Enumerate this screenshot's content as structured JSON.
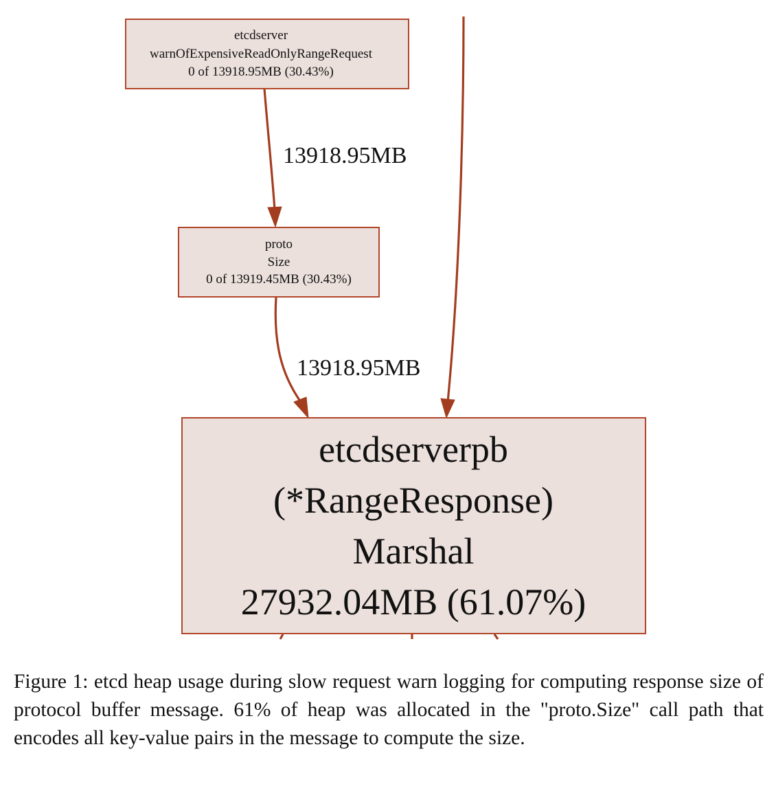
{
  "nodes": {
    "warn": {
      "line1": "etcdserver",
      "line2": "warnOfExpensiveReadOnlyRangeRequest",
      "line3": "0 of 13918.95MB (30.43%)"
    },
    "proto": {
      "line1": "proto",
      "line2": "Size",
      "line3": "0 of 13919.45MB (30.43%)"
    },
    "marshal": {
      "line1": "etcdserverpb",
      "line2": "(*RangeResponse)",
      "line3": "Marshal",
      "line4": "27932.04MB (61.07%)"
    }
  },
  "edges": {
    "warn_to_proto": "13918.95MB",
    "proto_to_marshal": "13918.95MB"
  },
  "caption": "Figure 1: etcd heap usage during slow request warn logging for computing response size of protocol buffer message. 61% of heap was allocated in the \"proto.Size\" call path that encodes all key-value pairs in the message to compute the size.",
  "colors": {
    "edge": "#a33d1f",
    "node_fill": "#ebe0dc",
    "node_border": "#b2452a"
  }
}
